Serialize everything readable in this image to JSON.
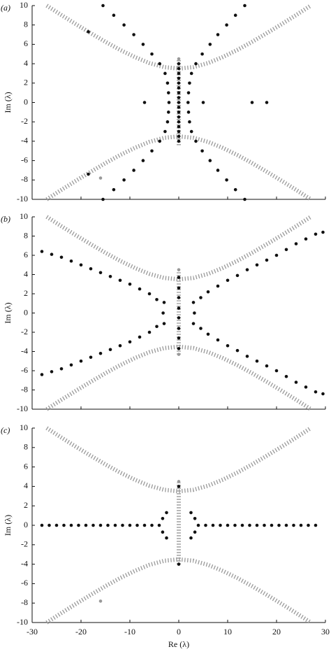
{
  "chart_data": [
    {
      "type": "scatter",
      "panel_label": "(a)",
      "ylabel": "Im (λ)",
      "xlim": [
        -30,
        30
      ],
      "ylim": [
        -10,
        10
      ],
      "xticks": [
        -30,
        -20,
        -10,
        0,
        10,
        20,
        30
      ],
      "yticks": [
        -10,
        -8,
        -6,
        -4,
        -2,
        0,
        2,
        4,
        6,
        8,
        10
      ],
      "xtick_labels": false,
      "series": [
        {
          "kind": "hatch",
          "color": "#999999",
          "x": [
            -27,
            -24,
            -21,
            -18,
            -15,
            -12,
            -9,
            -6,
            -3,
            0,
            3,
            6,
            9,
            12,
            15,
            18,
            21,
            24,
            27
          ],
          "values": [
            10,
            9.02,
            8.07,
            7.15,
            6.26,
            5.43,
            4.69,
            4.07,
            3.65,
            3.5,
            3.65,
            4.07,
            4.69,
            5.43,
            6.26,
            7.15,
            8.07,
            9.02,
            10
          ]
        },
        {
          "kind": "hatch",
          "color": "#999999",
          "x": [
            -27,
            -24,
            -21,
            -18,
            -15,
            -12,
            -9,
            -6,
            -3,
            0,
            3,
            6,
            9,
            12,
            15,
            18,
            21,
            24,
            27
          ],
          "values": [
            -10,
            -9.02,
            -8.07,
            -7.15,
            -6.26,
            -5.43,
            -4.69,
            -4.07,
            -3.65,
            -3.5,
            -3.65,
            -4.07,
            -4.69,
            -5.43,
            -6.26,
            -7.15,
            -8.07,
            -9.02,
            -10
          ]
        },
        {
          "kind": "hatch",
          "color": "#999999",
          "x": [
            0,
            0
          ],
          "values": [
            -4.4,
            4.4
          ]
        },
        {
          "kind": "dot",
          "color": "#999999",
          "x": [
            0,
            -16
          ],
          "values": [
            4.5,
            -7.8
          ]
        },
        {
          "kind": "dot",
          "color": "#111111",
          "x": [
            -15.5,
            -13.3,
            -11.2,
            -9.2,
            -7.3,
            -5.5,
            -3.9,
            -2.8,
            -2.3,
            -2.1,
            -2.0,
            -2.1,
            -2.3,
            -2.8,
            -3.9,
            -5.5,
            -7.3,
            -9.2,
            -11.2,
            -13.3,
            -15.5,
            13.5,
            11.6,
            9.8,
            8.0,
            6.4,
            4.8,
            3.5,
            2.6,
            2.2,
            2.0,
            1.9,
            2.0,
            2.2,
            2.6,
            3.5,
            4.8,
            6.4,
            8.0,
            9.8,
            11.6,
            13.5,
            0,
            0,
            0,
            0,
            0,
            0,
            0,
            0,
            0,
            0,
            0,
            0,
            0,
            0,
            0,
            0,
            0,
            -18.5,
            -18.5,
            -7,
            5,
            15,
            18
          ],
          "values": [
            10,
            9,
            8,
            7,
            6,
            5,
            4,
            3,
            2,
            1,
            0,
            -1,
            -2,
            -3,
            -4,
            -5,
            -6,
            -7,
            -8,
            -9,
            -10,
            10,
            9,
            8,
            7,
            6,
            5,
            4,
            3,
            2,
            1,
            0,
            -1,
            -2,
            -3,
            -4,
            -5,
            -6,
            -7,
            -8,
            -9,
            -10,
            -4,
            -3.5,
            -3,
            -2.5,
            -2,
            -1.5,
            -1,
            -0.5,
            0,
            0.5,
            1,
            1.5,
            2,
            2.5,
            3,
            3.5,
            4,
            7.3,
            -7.4,
            0,
            0,
            0,
            0
          ]
        }
      ]
    },
    {
      "type": "scatter",
      "panel_label": "(b)",
      "ylabel": "Im (λ)",
      "xlim": [
        -30,
        30
      ],
      "ylim": [
        -10,
        10
      ],
      "xticks": [
        -30,
        -20,
        -10,
        0,
        10,
        20,
        30
      ],
      "yticks": [
        -10,
        -8,
        -6,
        -4,
        -2,
        0,
        2,
        4,
        6,
        8,
        10
      ],
      "xtick_labels": false,
      "series": [
        {
          "kind": "hatch",
          "color": "#999999",
          "x": [
            -27,
            -24,
            -21,
            -18,
            -15,
            -12,
            -9,
            -6,
            -3,
            0,
            3,
            6,
            9,
            12,
            15,
            18,
            21,
            24,
            27
          ],
          "values": [
            10,
            9.02,
            8.07,
            7.15,
            6.26,
            5.43,
            4.69,
            4.07,
            3.65,
            3.5,
            3.65,
            4.07,
            4.69,
            5.43,
            6.26,
            7.15,
            8.07,
            9.02,
            10
          ]
        },
        {
          "kind": "hatch",
          "color": "#999999",
          "x": [
            -27,
            -24,
            -21,
            -18,
            -15,
            -12,
            -9,
            -6,
            -3,
            0,
            3,
            6,
            9,
            12,
            15,
            18,
            21,
            24,
            27
          ],
          "values": [
            -10,
            -9.02,
            -8.07,
            -7.15,
            -6.26,
            -5.43,
            -4.69,
            -4.07,
            -3.65,
            -3.5,
            -3.65,
            -4.07,
            -4.69,
            -5.43,
            -6.26,
            -7.15,
            -8.07,
            -9.02,
            -10
          ]
        },
        {
          "kind": "hatch",
          "color": "#999999",
          "x": [
            0,
            0
          ],
          "values": [
            -4.3,
            4.4
          ]
        },
        {
          "kind": "dot",
          "color": "#999999",
          "x": [
            0,
            0
          ],
          "values": [
            4.5,
            -4.3
          ]
        },
        {
          "kind": "dot",
          "color": "#111111",
          "x": [
            -28,
            -26,
            -24,
            -22,
            -20,
            -18,
            -16,
            -14,
            -12,
            -10,
            -8,
            -6,
            -4.5,
            -3,
            -28,
            -26,
            -24,
            -22,
            -20,
            -18,
            -16,
            -14,
            -12,
            -10,
            -8,
            -6,
            -4.5,
            -3,
            3,
            4.5,
            6,
            8,
            10,
            12,
            14,
            16,
            18,
            20,
            22,
            24,
            26,
            28,
            29.5,
            3,
            4.5,
            6,
            8,
            10,
            12,
            14,
            16,
            18,
            20,
            22,
            24,
            26,
            28,
            29.5,
            -3.2,
            3.2,
            0,
            0,
            0,
            0,
            0,
            0,
            0,
            0
          ],
          "values": [
            6.4,
            6.1,
            5.8,
            5.4,
            5.0,
            4.6,
            4.2,
            3.8,
            3.4,
            3.0,
            2.5,
            2.0,
            1.4,
            1.1,
            -6.4,
            -6.1,
            -5.8,
            -5.4,
            -5.0,
            -4.6,
            -4.2,
            -3.8,
            -3.4,
            -3.0,
            -2.5,
            -2.0,
            -1.4,
            -1.1,
            1.1,
            1.6,
            2.2,
            2.8,
            3.4,
            3.9,
            4.5,
            5.0,
            5.5,
            6.0,
            6.6,
            7.2,
            7.7,
            8.2,
            8.4,
            -1.1,
            -1.6,
            -2.2,
            -2.8,
            -3.4,
            -3.9,
            -4.5,
            -5.0,
            -5.5,
            -6.0,
            -6.6,
            -7.2,
            -7.7,
            -8.2,
            -8.4,
            0,
            0,
            3.7,
            2.6,
            1.6,
            0.5,
            -0.5,
            -1.6,
            -2.6,
            -3.7
          ]
        }
      ]
    },
    {
      "type": "scatter",
      "panel_label": "(c)",
      "ylabel": "Im (λ)",
      "xlabel": "Re (λ)",
      "xlim": [
        -30,
        30
      ],
      "ylim": [
        -10,
        10
      ],
      "xticks": [
        -30,
        -20,
        -10,
        0,
        10,
        20,
        30
      ],
      "yticks": [
        -10,
        -8,
        -6,
        -4,
        -2,
        0,
        2,
        4,
        6,
        8,
        10
      ],
      "xtick_labels": true,
      "series": [
        {
          "kind": "hatch",
          "color": "#999999",
          "x": [
            -27,
            -24,
            -21,
            -18,
            -15,
            -12,
            -9,
            -6,
            -3,
            0,
            3,
            6,
            9,
            12,
            15,
            18,
            21,
            24,
            27
          ],
          "values": [
            10,
            9.02,
            8.07,
            7.15,
            6.26,
            5.43,
            4.69,
            4.07,
            3.65,
            3.5,
            3.65,
            4.07,
            4.69,
            5.43,
            6.26,
            7.15,
            8.07,
            9.02,
            10
          ]
        },
        {
          "kind": "hatch",
          "color": "#999999",
          "x": [
            -27,
            -24,
            -21,
            -18,
            -15,
            -12,
            -9,
            -6,
            -3,
            0,
            3,
            6,
            9,
            12,
            15,
            18,
            21,
            24,
            27
          ],
          "values": [
            -10,
            -9.02,
            -8.07,
            -7.15,
            -6.26,
            -5.43,
            -4.69,
            -4.07,
            -3.65,
            -3.5,
            -3.65,
            -4.07,
            -4.69,
            -5.43,
            -6.26,
            -7.15,
            -8.07,
            -9.02,
            -10
          ]
        },
        {
          "kind": "hatch",
          "color": "#999999",
          "x": [
            0,
            0
          ],
          "values": [
            -4.0,
            4.4
          ]
        },
        {
          "kind": "dot",
          "color": "#999999",
          "x": [
            0,
            -16
          ],
          "values": [
            4.5,
            -7.8
          ]
        },
        {
          "kind": "dot",
          "color": "#111111",
          "x": [
            -28,
            -26.5,
            -25,
            -23.5,
            -22,
            -20.5,
            -19,
            -17.5,
            -16,
            -14.5,
            -13,
            -11.5,
            -10,
            -8.5,
            -7,
            -5.5,
            -4,
            4,
            5.5,
            7,
            8.5,
            10,
            11.5,
            13,
            14.5,
            16,
            17.5,
            19,
            20.5,
            22,
            23.5,
            25,
            26.5,
            28,
            -3.3,
            -3.3,
            3.3,
            3.3,
            -2.5,
            -2.5,
            2.5,
            2.5,
            0,
            0
          ],
          "values": [
            0,
            0,
            0,
            0,
            0,
            0,
            0,
            0,
            0,
            0,
            0,
            0,
            0,
            0,
            0,
            0,
            0,
            0,
            0,
            0,
            0,
            0,
            0,
            0,
            0,
            0,
            0,
            0,
            0,
            0,
            0,
            0,
            0,
            0,
            0.7,
            -0.7,
            0.7,
            -0.7,
            1.3,
            -1.3,
            1.3,
            -1.3,
            4,
            -4
          ]
        }
      ]
    }
  ]
}
